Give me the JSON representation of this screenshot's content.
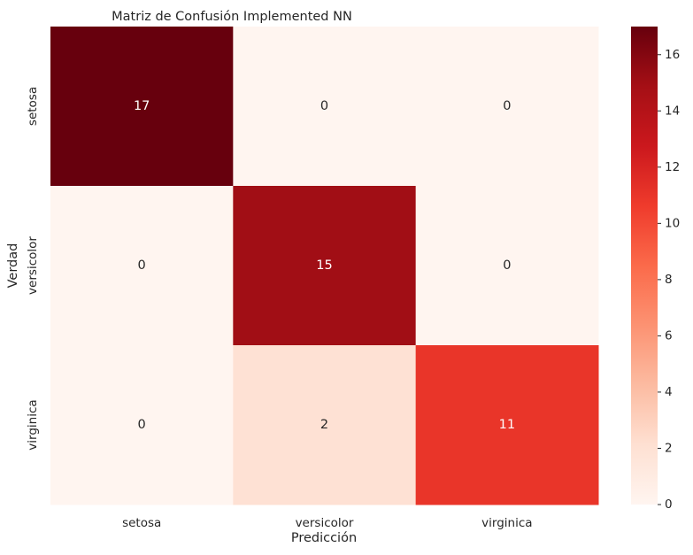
{
  "chart_data": {
    "type": "heatmap",
    "title": "Matriz de Confusión Implemented NN",
    "xlabel": "Predicción",
    "ylabel": "Verdad",
    "x_categories": [
      "setosa",
      "versicolor",
      "virginica"
    ],
    "y_categories": [
      "setosa",
      "versicolor",
      "virginica"
    ],
    "values": [
      [
        17,
        0,
        0
      ],
      [
        0,
        15,
        0
      ],
      [
        0,
        2,
        11
      ]
    ],
    "colormap": "Reds",
    "vmin": 0,
    "vmax": 17,
    "colorbar_ticks": [
      "0",
      "2",
      "4",
      "6",
      "8",
      "10",
      "12",
      "14",
      "16"
    ],
    "colors": {
      "low": "#fff5f0",
      "high": "#67000d",
      "annotation_dark": "#262626",
      "annotation_light": "#ffffff"
    }
  }
}
